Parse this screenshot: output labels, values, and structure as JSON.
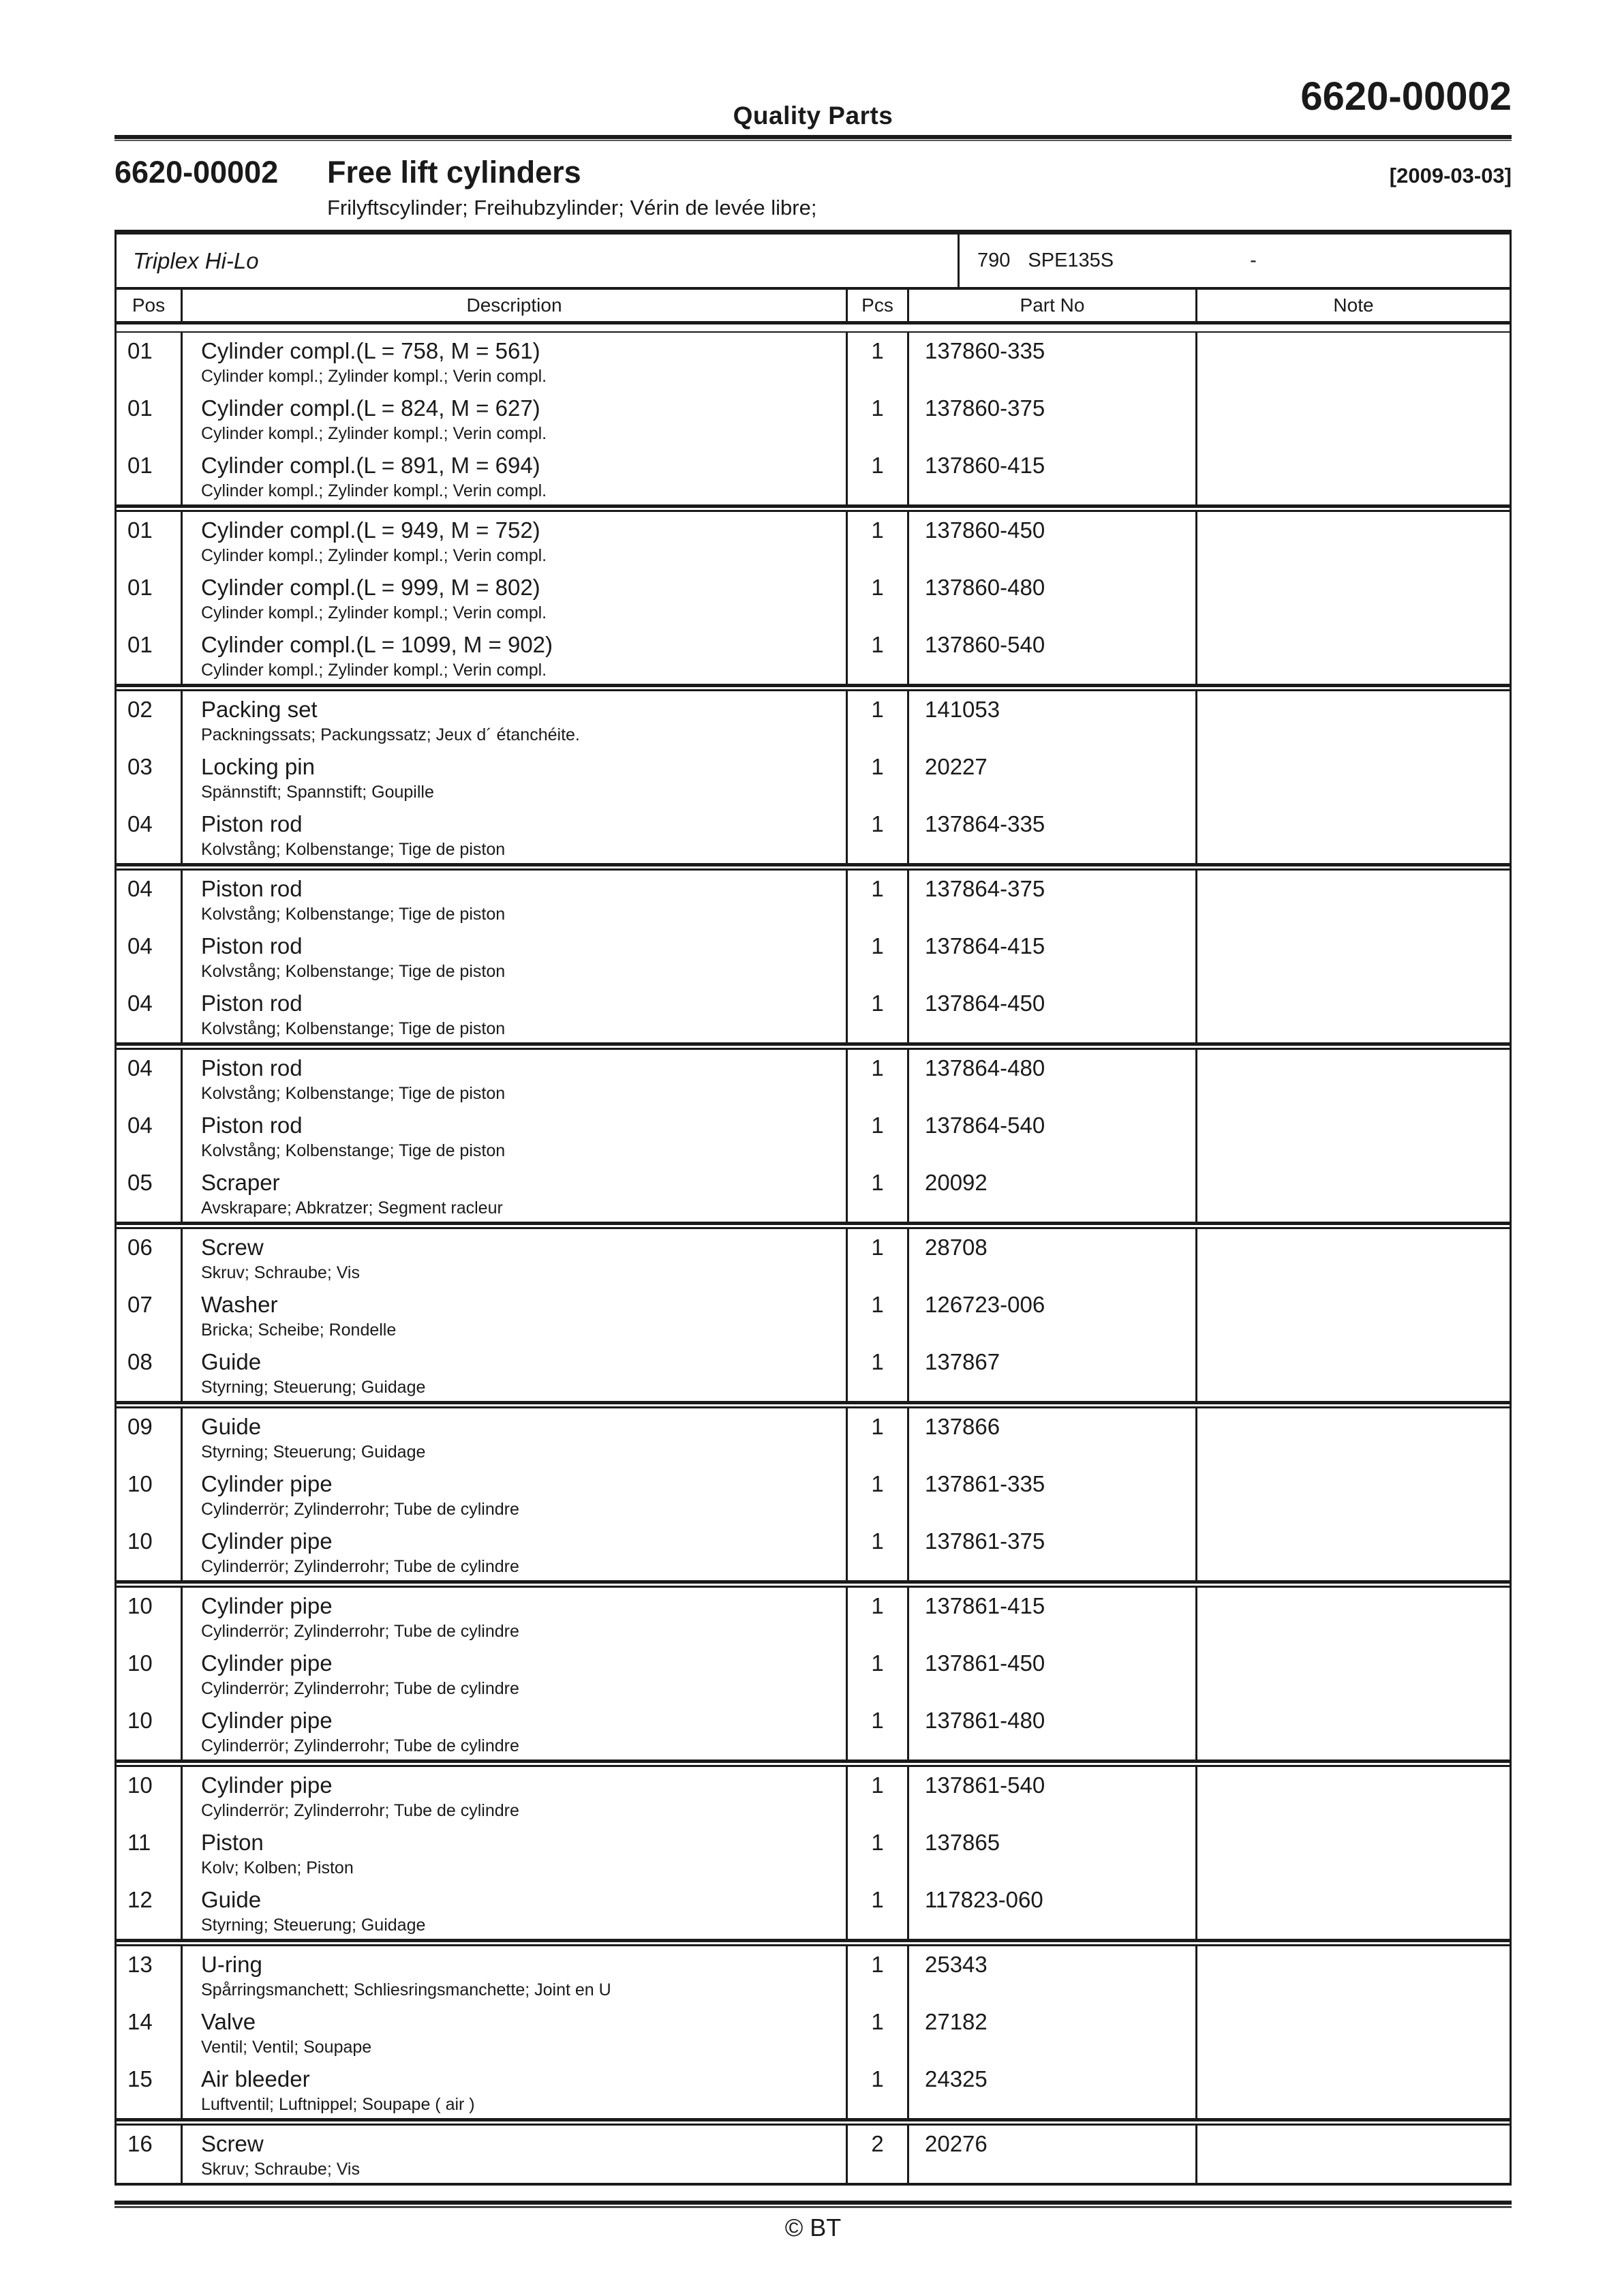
{
  "header": {
    "center_label": "Quality Parts",
    "doc_number": "6620-00002"
  },
  "title": {
    "number": "6620-00002",
    "name": "Free lift cylinders",
    "date": "[2009-03-03]",
    "subtitle": "Frilyftscylinder; Freihubzylinder; Vérin de levée libre;"
  },
  "model_bar": {
    "model": "Triplex Hi-Lo",
    "code": "790",
    "spec": "SPE135S",
    "dash": "-"
  },
  "table": {
    "columns": [
      "Pos",
      "Description",
      "Pcs",
      "Part No",
      "Note"
    ],
    "rows": [
      {
        "pos": "01",
        "desc": "Cylinder compl.(L = 758,  M = 561)",
        "sub": "Cylinder kompl.; Zylinder kompl.; Verin compl.",
        "pcs": "1",
        "part": "137860-335",
        "note": "",
        "sep": false
      },
      {
        "pos": "01",
        "desc": "Cylinder compl.(L = 824,  M = 627)",
        "sub": "Cylinder kompl.; Zylinder kompl.; Verin compl.",
        "pcs": "1",
        "part": "137860-375",
        "note": "",
        "sep": false
      },
      {
        "pos": "01",
        "desc": "Cylinder compl.(L = 891,  M = 694)",
        "sub": "Cylinder kompl.; Zylinder kompl.; Verin compl.",
        "pcs": "1",
        "part": "137860-415",
        "note": "",
        "sep": true
      },
      {
        "pos": "01",
        "desc": "Cylinder compl.(L = 949,  M = 752)",
        "sub": "Cylinder kompl.; Zylinder kompl.; Verin compl.",
        "pcs": "1",
        "part": "137860-450",
        "note": "",
        "sep": false
      },
      {
        "pos": "01",
        "desc": "Cylinder compl.(L = 999,  M = 802)",
        "sub": "Cylinder kompl.; Zylinder kompl.; Verin compl.",
        "pcs": "1",
        "part": "137860-480",
        "note": "",
        "sep": false
      },
      {
        "pos": "01",
        "desc": "Cylinder compl.(L = 1099,  M = 902)",
        "sub": "Cylinder kompl.; Zylinder kompl.; Verin compl.",
        "pcs": "1",
        "part": "137860-540",
        "note": "",
        "sep": true
      },
      {
        "pos": "02",
        "desc": "Packing set",
        "sub": "Packningssats; Packungssatz; Jeux d´ étanchéite.",
        "pcs": "1",
        "part": "141053",
        "note": "",
        "sep": false
      },
      {
        "pos": "03",
        "desc": "Locking pin",
        "sub": "Spännstift; Spannstift; Goupille",
        "pcs": "1",
        "part": "20227",
        "note": "",
        "sep": false
      },
      {
        "pos": "04",
        "desc": "Piston rod",
        "sub": "Kolvstång; Kolbenstange; Tige de piston",
        "pcs": "1",
        "part": "137864-335",
        "note": "",
        "sep": true
      },
      {
        "pos": "04",
        "desc": "Piston rod",
        "sub": "Kolvstång; Kolbenstange; Tige de piston",
        "pcs": "1",
        "part": "137864-375",
        "note": "",
        "sep": false
      },
      {
        "pos": "04",
        "desc": "Piston rod",
        "sub": "Kolvstång; Kolbenstange; Tige de piston",
        "pcs": "1",
        "part": "137864-415",
        "note": "",
        "sep": false
      },
      {
        "pos": "04",
        "desc": "Piston rod",
        "sub": "Kolvstång; Kolbenstange; Tige de piston",
        "pcs": "1",
        "part": "137864-450",
        "note": "",
        "sep": true
      },
      {
        "pos": "04",
        "desc": "Piston rod",
        "sub": "Kolvstång; Kolbenstange; Tige de piston",
        "pcs": "1",
        "part": "137864-480",
        "note": "",
        "sep": false
      },
      {
        "pos": "04",
        "desc": "Piston rod",
        "sub": "Kolvstång; Kolbenstange; Tige de piston",
        "pcs": "1",
        "part": "137864-540",
        "note": "",
        "sep": false
      },
      {
        "pos": "05",
        "desc": "Scraper",
        "sub": "Avskrapare; Abkratzer; Segment racleur",
        "pcs": "1",
        "part": "20092",
        "note": "",
        "sep": true
      },
      {
        "pos": "06",
        "desc": "Screw",
        "sub": "Skruv; Schraube; Vis",
        "pcs": "1",
        "part": "28708",
        "note": "",
        "sep": false
      },
      {
        "pos": "07",
        "desc": "Washer",
        "sub": "Bricka; Scheibe; Rondelle",
        "pcs": "1",
        "part": "126723-006",
        "note": "",
        "sep": false
      },
      {
        "pos": "08",
        "desc": "Guide",
        "sub": "Styrning; Steuerung; Guidage",
        "pcs": "1",
        "part": "137867",
        "note": "",
        "sep": true
      },
      {
        "pos": "09",
        "desc": "Guide",
        "sub": "Styrning; Steuerung; Guidage",
        "pcs": "1",
        "part": "137866",
        "note": "",
        "sep": false
      },
      {
        "pos": "10",
        "desc": "Cylinder pipe",
        "sub": "Cylinderrör; Zylinderrohr; Tube de cylindre",
        "pcs": "1",
        "part": "137861-335",
        "note": "",
        "sep": false
      },
      {
        "pos": "10",
        "desc": "Cylinder pipe",
        "sub": "Cylinderrör; Zylinderrohr; Tube de cylindre",
        "pcs": "1",
        "part": "137861-375",
        "note": "",
        "sep": true
      },
      {
        "pos": "10",
        "desc": "Cylinder pipe",
        "sub": "Cylinderrör; Zylinderrohr; Tube de cylindre",
        "pcs": "1",
        "part": "137861-415",
        "note": "",
        "sep": false
      },
      {
        "pos": "10",
        "desc": "Cylinder pipe",
        "sub": "Cylinderrör; Zylinderrohr; Tube de cylindre",
        "pcs": "1",
        "part": "137861-450",
        "note": "",
        "sep": false
      },
      {
        "pos": "10",
        "desc": "Cylinder pipe",
        "sub": "Cylinderrör; Zylinderrohr; Tube de cylindre",
        "pcs": "1",
        "part": "137861-480",
        "note": "",
        "sep": true
      },
      {
        "pos": "10",
        "desc": "Cylinder pipe",
        "sub": "Cylinderrör; Zylinderrohr; Tube de cylindre",
        "pcs": "1",
        "part": "137861-540",
        "note": "",
        "sep": false
      },
      {
        "pos": "11",
        "desc": "Piston",
        "sub": "Kolv; Kolben; Piston",
        "pcs": "1",
        "part": "137865",
        "note": "",
        "sep": false
      },
      {
        "pos": "12",
        "desc": "Guide",
        "sub": "Styrning; Steuerung; Guidage",
        "pcs": "1",
        "part": "117823-060",
        "note": "",
        "sep": true
      },
      {
        "pos": "13",
        "desc": "U-ring",
        "sub": "Spårringsmanchett; Schliesringsmanchette; Joint en U",
        "pcs": "1",
        "part": "25343",
        "note": "",
        "sep": false
      },
      {
        "pos": "14",
        "desc": "Valve",
        "sub": "Ventil; Ventil; Soupape",
        "pcs": "1",
        "part": "27182",
        "note": "",
        "sep": false
      },
      {
        "pos": "15",
        "desc": "Air bleeder",
        "sub": "Luftventil; Luftnippel; Soupape ( air )",
        "pcs": "1",
        "part": "24325",
        "note": "",
        "sep": true
      },
      {
        "pos": "16",
        "desc": "Screw",
        "sub": "Skruv; Schraube; Vis",
        "pcs": "2",
        "part": "20276",
        "note": "",
        "sep": false
      }
    ]
  },
  "footer": {
    "copyright": "© BT"
  }
}
